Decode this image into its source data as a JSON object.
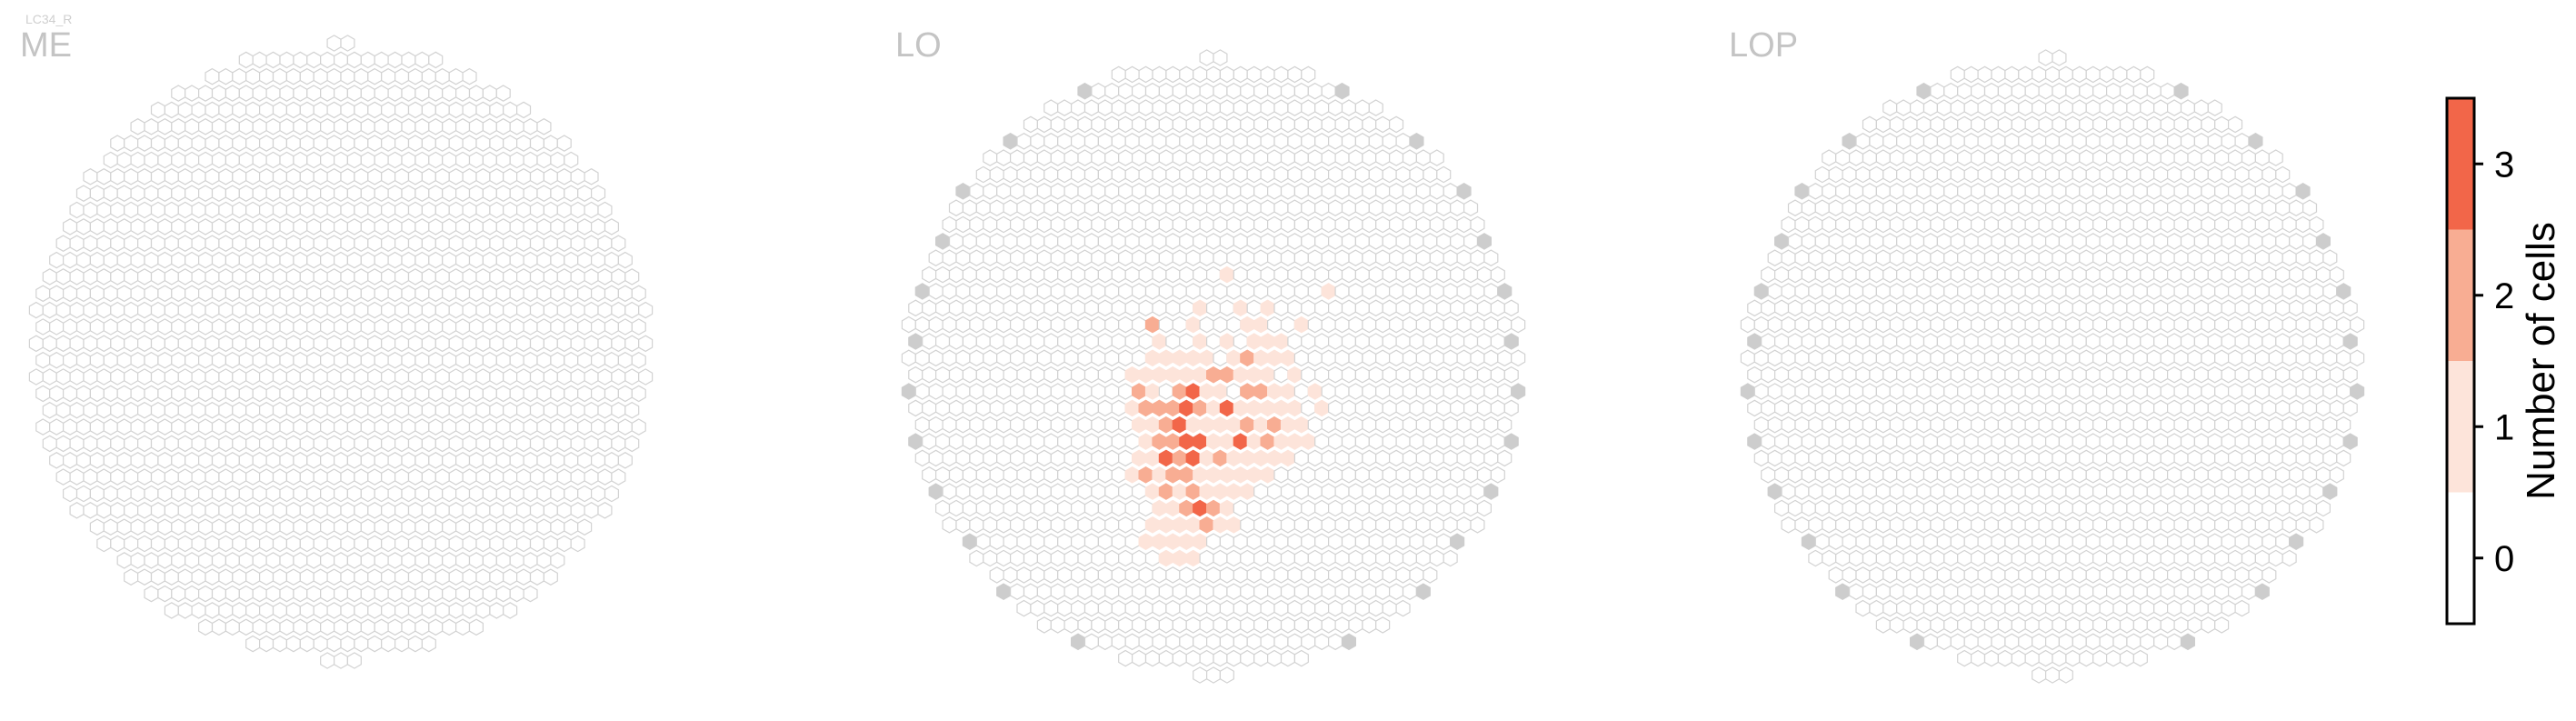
{
  "figure_label": "LC34_R",
  "colors": {
    "empty_stroke": "#d2d2d2",
    "boundary_fill": "#cdcdcd",
    "count_1": "#fde4da",
    "count_2": "#f8ad93",
    "count_3": "#f26649",
    "cbar_outline": "#000000"
  },
  "chart_data": {
    "type": "heatmap",
    "panels": [
      {
        "title": "ME"
      },
      {
        "title": "LO"
      },
      {
        "title": "LOP"
      }
    ],
    "colorbar": {
      "label": "Number of cells",
      "range": [
        -0.5,
        3.5
      ],
      "ticks": [
        0,
        1,
        2,
        3
      ],
      "tick_labels": [
        "0",
        "1",
        "2",
        "3"
      ],
      "levels": [
        {
          "value": 0,
          "color": "#ffffff"
        },
        {
          "value": 1,
          "color": "#fde4da"
        },
        {
          "value": 2,
          "color": "#f8ad93"
        },
        {
          "value": 3,
          "color": "#f26649"
        }
      ]
    },
    "grid_rows": {
      "ME": 40,
      "LO": 40,
      "LOP": 40
    },
    "LO_counts_by_row": [
      [
        14,
        [
          [
            9,
            1
          ]
        ]
      ],
      [
        15,
        [
          [
            16,
            1
          ]
        ]
      ],
      [
        16,
        [
          [
            7,
            1
          ],
          [
            10,
            1
          ],
          [
            12,
            1
          ]
        ]
      ],
      [
        17,
        [
          [
            3,
            2
          ],
          [
            6,
            1
          ],
          [
            10,
            1
          ],
          [
            11,
            1
          ],
          [
            14,
            1
          ]
        ]
      ],
      [
        18,
        [
          [
            4,
            1
          ],
          [
            7,
            1
          ],
          [
            9,
            1
          ],
          [
            11,
            1
          ],
          [
            12,
            1
          ],
          [
            13,
            1
          ]
        ]
      ],
      [
        19,
        [
          [
            3,
            1
          ],
          [
            4,
            1
          ],
          [
            5,
            1
          ],
          [
            6,
            1
          ],
          [
            7,
            1
          ],
          [
            9,
            1
          ],
          [
            10,
            2
          ],
          [
            11,
            1
          ],
          [
            12,
            1
          ],
          [
            13,
            1
          ]
        ]
      ],
      [
        20,
        [
          [
            2,
            1
          ],
          [
            3,
            1
          ],
          [
            4,
            1
          ],
          [
            5,
            1
          ],
          [
            6,
            1
          ],
          [
            7,
            1
          ],
          [
            8,
            2
          ],
          [
            9,
            2
          ],
          [
            10,
            1
          ],
          [
            11,
            1
          ],
          [
            12,
            1
          ],
          [
            14,
            1
          ]
        ]
      ],
      [
        21,
        [
          [
            2,
            2
          ],
          [
            3,
            1
          ],
          [
            5,
            2
          ],
          [
            6,
            3
          ],
          [
            7,
            1
          ],
          [
            8,
            1
          ],
          [
            10,
            2
          ],
          [
            11,
            2
          ],
          [
            12,
            1
          ],
          [
            13,
            1
          ],
          [
            15,
            1
          ]
        ]
      ],
      [
        22,
        [
          [
            2,
            1
          ],
          [
            3,
            2
          ],
          [
            4,
            2
          ],
          [
            5,
            2
          ],
          [
            6,
            3
          ],
          [
            7,
            2
          ],
          [
            8,
            1
          ],
          [
            9,
            3
          ],
          [
            10,
            1
          ],
          [
            11,
            1
          ],
          [
            12,
            1
          ],
          [
            13,
            1
          ],
          [
            14,
            1
          ],
          [
            16,
            1
          ]
        ]
      ],
      [
        23,
        [
          [
            2,
            1
          ],
          [
            3,
            1
          ],
          [
            4,
            2
          ],
          [
            5,
            3
          ],
          [
            6,
            1
          ],
          [
            7,
            1
          ],
          [
            8,
            1
          ],
          [
            9,
            1
          ],
          [
            10,
            2
          ],
          [
            11,
            1
          ],
          [
            12,
            2
          ],
          [
            13,
            1
          ],
          [
            14,
            1
          ]
        ]
      ],
      [
        24,
        [
          [
            3,
            1
          ],
          [
            4,
            2
          ],
          [
            5,
            2
          ],
          [
            6,
            3
          ],
          [
            7,
            3
          ],
          [
            8,
            1
          ],
          [
            9,
            1
          ],
          [
            10,
            3
          ],
          [
            11,
            1
          ],
          [
            12,
            2
          ],
          [
            13,
            1
          ],
          [
            14,
            1
          ],
          [
            15,
            1
          ]
        ]
      ],
      [
        25,
        [
          [
            2,
            1
          ],
          [
            3,
            1
          ],
          [
            4,
            3
          ],
          [
            5,
            2
          ],
          [
            6,
            3
          ],
          [
            7,
            1
          ],
          [
            8,
            2
          ],
          [
            9,
            1
          ],
          [
            10,
            1
          ],
          [
            11,
            1
          ],
          [
            12,
            1
          ],
          [
            13,
            1
          ]
        ]
      ],
      [
        26,
        [
          [
            2,
            1
          ],
          [
            3,
            2
          ],
          [
            4,
            1
          ],
          [
            5,
            2
          ],
          [
            6,
            2
          ],
          [
            7,
            1
          ],
          [
            8,
            1
          ],
          [
            9,
            1
          ],
          [
            10,
            1
          ],
          [
            11,
            1
          ],
          [
            12,
            1
          ]
        ]
      ],
      [
        27,
        [
          [
            3,
            1
          ],
          [
            4,
            2
          ],
          [
            5,
            1
          ],
          [
            6,
            2
          ],
          [
            7,
            1
          ],
          [
            8,
            1
          ],
          [
            9,
            1
          ],
          [
            10,
            1
          ]
        ]
      ],
      [
        28,
        [
          [
            4,
            1
          ],
          [
            5,
            1
          ],
          [
            6,
            2
          ],
          [
            7,
            3
          ],
          [
            8,
            2
          ],
          [
            9,
            1
          ]
        ]
      ],
      [
        29,
        [
          [
            3,
            1
          ],
          [
            4,
            1
          ],
          [
            5,
            1
          ],
          [
            6,
            1
          ],
          [
            7,
            2
          ],
          [
            8,
            1
          ],
          [
            9,
            1
          ]
        ]
      ],
      [
        30,
        [
          [
            3,
            1
          ],
          [
            4,
            1
          ],
          [
            5,
            1
          ],
          [
            6,
            1
          ],
          [
            7,
            1
          ]
        ]
      ],
      [
        31,
        [
          [
            4,
            1
          ],
          [
            5,
            1
          ],
          [
            6,
            1
          ]
        ]
      ]
    ]
  }
}
